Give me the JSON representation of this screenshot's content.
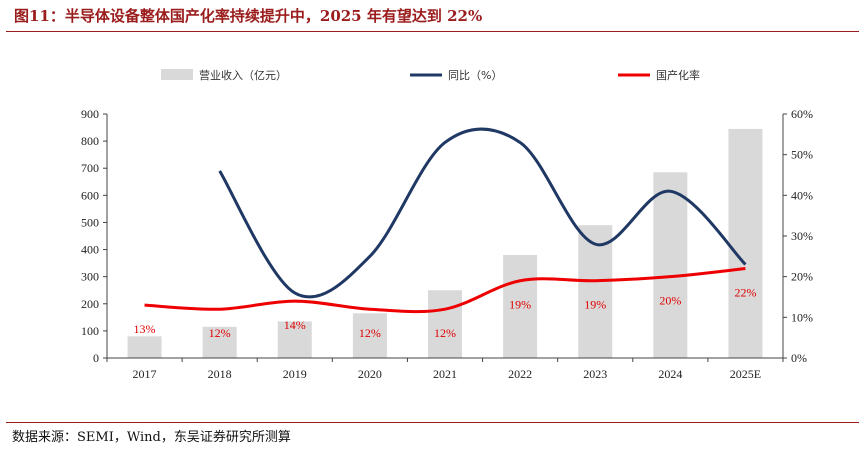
{
  "title": "图11：半导体设备整体国产化率持续提升中，2025 年有望达到 22%",
  "source": "数据来源：SEMI，Wind，东吴证券研究所测算",
  "chart_data": {
    "type": "bar+line",
    "categories": [
      "2017",
      "2018",
      "2019",
      "2020",
      "2021",
      "2022",
      "2023",
      "2024",
      "2025E"
    ],
    "series": [
      {
        "name": "营业收入（亿元）",
        "kind": "bar",
        "axis": "left",
        "color": "#d9d9d9",
        "values": [
          80,
          115,
          135,
          165,
          250,
          380,
          490,
          685,
          845
        ]
      },
      {
        "name": "同比（%）",
        "kind": "line",
        "axis": "right",
        "color": "#1f3864",
        "smooth": true,
        "values": [
          null,
          46,
          16,
          25,
          53,
          53,
          28,
          41,
          23
        ]
      },
      {
        "name": "国产化率",
        "kind": "line",
        "axis": "right",
        "color": "#ee0000",
        "values": [
          13,
          12,
          14,
          12,
          12,
          19,
          19,
          20,
          22
        ],
        "labels": [
          "13%",
          "12%",
          "14%",
          "12%",
          "12%",
          "19%",
          "19%",
          "20%",
          "22%"
        ]
      }
    ],
    "y_left": {
      "min": 0,
      "max": 900,
      "ticks": [
        "0",
        "100",
        "200",
        "300",
        "400",
        "500",
        "600",
        "700",
        "800",
        "900"
      ]
    },
    "y_right": {
      "min": 0,
      "max": 60,
      "ticks": [
        "0%",
        "10%",
        "20%",
        "30%",
        "40%",
        "50%",
        "60%"
      ]
    },
    "legend_position": "top",
    "grid": false
  }
}
